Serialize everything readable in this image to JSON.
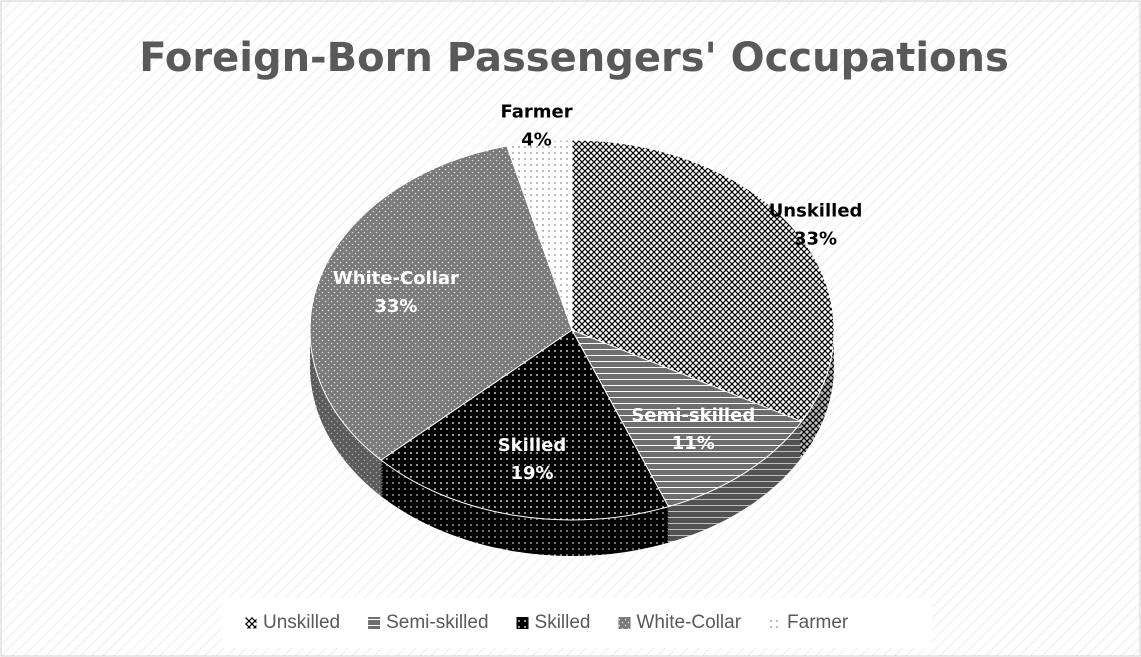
{
  "chart_data": {
    "type": "pie",
    "title": "Foreign-Born Passengers' Occupations",
    "categories": [
      "Unskilled",
      "Semi-skilled",
      "Skilled",
      "White-Collar",
      "Farmer"
    ],
    "values": [
      33,
      11,
      19,
      33,
      4
    ],
    "value_labels": [
      "33%",
      "11%",
      "19%",
      "33%",
      "4%"
    ],
    "colors": [
      "#ffffff",
      "#6e6e6e",
      "#000000",
      "#7a7a7a",
      "#ffffff"
    ],
    "legend": "bottom"
  }
}
